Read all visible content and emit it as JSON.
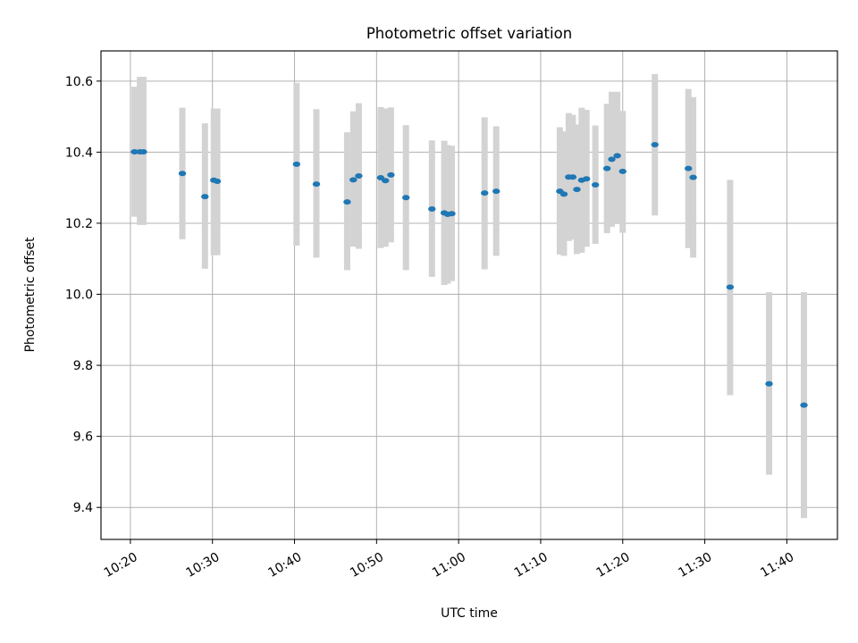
{
  "chart_data": {
    "type": "scatter",
    "title": "Photometric offset variation",
    "xlabel": "UTC time",
    "ylabel": "Photometric offset",
    "grid": true,
    "legend": false,
    "xlim": [
      "10:16:25",
      "11:46:10"
    ],
    "ylim": [
      9.31,
      10.685
    ],
    "x_ticks": [
      "10:20",
      "10:30",
      "10:40",
      "10:50",
      "11:00",
      "11:10",
      "11:20",
      "11:30",
      "11:40"
    ],
    "y_ticks": [
      "9.4",
      "9.6",
      "9.8",
      "10.0",
      "10.2",
      "10.4",
      "10.6"
    ],
    "series": [
      {
        "marker": "point",
        "errorbar_color": "#d3d3d3",
        "marker_color": "#1f77b4",
        "points": [
          {
            "t": "10:20:30",
            "y": 10.401,
            "lo": 10.218,
            "hi": 10.584
          },
          {
            "t": "10:21:10",
            "y": 10.401,
            "lo": 10.195,
            "hi": 10.612
          },
          {
            "t": "10:21:35",
            "y": 10.401,
            "lo": 10.195,
            "hi": 10.612
          },
          {
            "t": "10:26:20",
            "y": 10.34,
            "lo": 10.155,
            "hi": 10.525
          },
          {
            "t": "10:29:05",
            "y": 10.275,
            "lo": 10.072,
            "hi": 10.481
          },
          {
            "t": "10:30:10",
            "y": 10.321,
            "lo": 10.11,
            "hi": 10.523
          },
          {
            "t": "10:30:35",
            "y": 10.318,
            "lo": 10.11,
            "hi": 10.523
          },
          {
            "t": "10:40:15",
            "y": 10.366,
            "lo": 10.137,
            "hi": 10.595
          },
          {
            "t": "10:42:40",
            "y": 10.31,
            "lo": 10.103,
            "hi": 10.521
          },
          {
            "t": "10:46:25",
            "y": 10.26,
            "lo": 10.068,
            "hi": 10.456
          },
          {
            "t": "10:47:10",
            "y": 10.322,
            "lo": 10.134,
            "hi": 10.515
          },
          {
            "t": "10:47:50",
            "y": 10.333,
            "lo": 10.128,
            "hi": 10.538
          },
          {
            "t": "10:50:30",
            "y": 10.328,
            "lo": 10.13,
            "hi": 10.527
          },
          {
            "t": "10:51:05",
            "y": 10.32,
            "lo": 10.134,
            "hi": 10.523
          },
          {
            "t": "10:51:45",
            "y": 10.336,
            "lo": 10.146,
            "hi": 10.526
          },
          {
            "t": "10:53:35",
            "y": 10.272,
            "lo": 10.068,
            "hi": 10.476
          },
          {
            "t": "10:56:45",
            "y": 10.24,
            "lo": 10.049,
            "hi": 10.433
          },
          {
            "t": "10:58:15",
            "y": 10.229,
            "lo": 10.026,
            "hi": 10.432
          },
          {
            "t": "10:58:40",
            "y": 10.225,
            "lo": 10.03,
            "hi": 10.42
          },
          {
            "t": "10:59:10",
            "y": 10.227,
            "lo": 10.037,
            "hi": 10.418
          },
          {
            "t": "11:03:10",
            "y": 10.285,
            "lo": 10.07,
            "hi": 10.498
          },
          {
            "t": "11:04:35",
            "y": 10.29,
            "lo": 10.108,
            "hi": 10.473
          },
          {
            "t": "11:12:20",
            "y": 10.29,
            "lo": 10.112,
            "hi": 10.47
          },
          {
            "t": "11:12:50",
            "y": 10.282,
            "lo": 10.108,
            "hi": 10.458
          },
          {
            "t": "11:13:25",
            "y": 10.33,
            "lo": 10.15,
            "hi": 10.51
          },
          {
            "t": "11:13:55",
            "y": 10.33,
            "lo": 10.154,
            "hi": 10.505
          },
          {
            "t": "11:14:25",
            "y": 10.295,
            "lo": 10.113,
            "hi": 10.478
          },
          {
            "t": "11:15:00",
            "y": 10.321,
            "lo": 10.117,
            "hi": 10.525
          },
          {
            "t": "11:15:35",
            "y": 10.325,
            "lo": 10.134,
            "hi": 10.519
          },
          {
            "t": "11:16:40",
            "y": 10.308,
            "lo": 10.142,
            "hi": 10.475
          },
          {
            "t": "11:18:05",
            "y": 10.354,
            "lo": 10.172,
            "hi": 10.536
          },
          {
            "t": "11:18:40",
            "y": 10.38,
            "lo": 10.19,
            "hi": 10.57
          },
          {
            "t": "11:19:20",
            "y": 10.39,
            "lo": 10.2,
            "hi": 10.57
          },
          {
            "t": "11:20:00",
            "y": 10.346,
            "lo": 10.173,
            "hi": 10.516
          },
          {
            "t": "11:23:55",
            "y": 10.421,
            "lo": 10.222,
            "hi": 10.62
          },
          {
            "t": "11:28:00",
            "y": 10.354,
            "lo": 10.13,
            "hi": 10.578
          },
          {
            "t": "11:28:35",
            "y": 10.329,
            "lo": 10.103,
            "hi": 10.555
          },
          {
            "t": "11:33:05",
            "y": 10.02,
            "lo": 9.716,
            "hi": 10.322
          },
          {
            "t": "11:37:50",
            "y": 9.748,
            "lo": 9.492,
            "hi": 10.006
          },
          {
            "t": "11:42:05",
            "y": 9.688,
            "lo": 9.37,
            "hi": 10.006
          }
        ]
      }
    ]
  }
}
